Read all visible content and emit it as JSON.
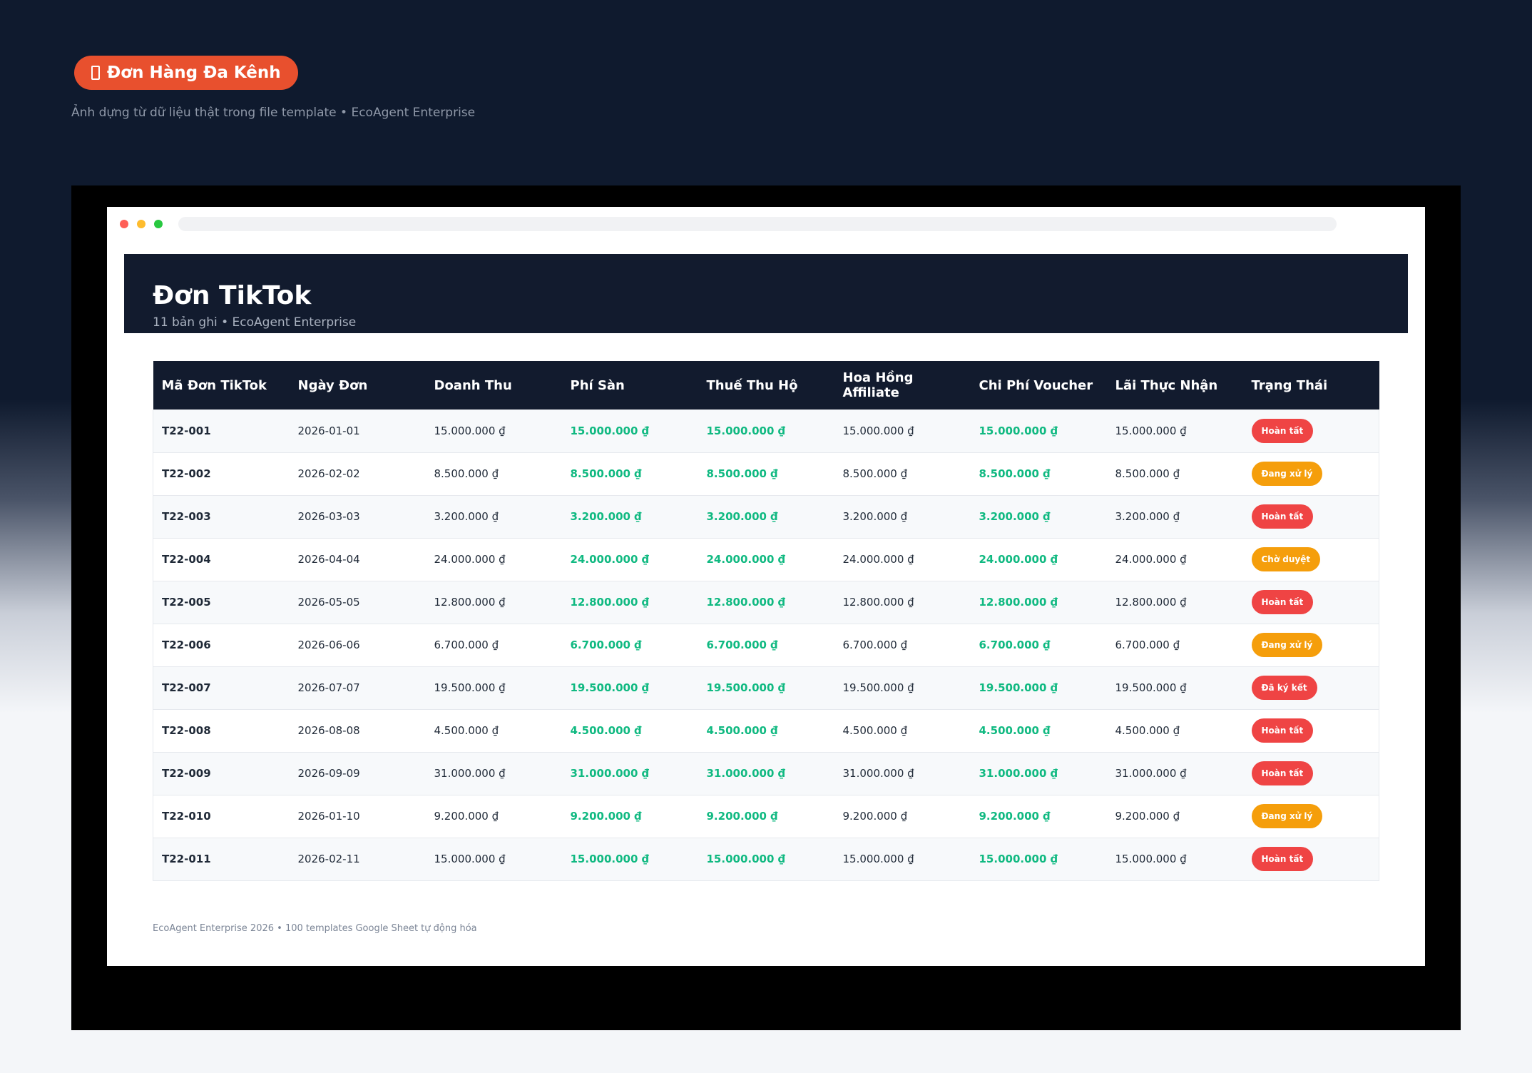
{
  "banner": {
    "label": "Đơn Hàng Đa Kênh",
    "caption": "Ảnh dựng từ dữ liệu thật trong file template • EcoAgent Enterprise"
  },
  "sheet": {
    "title": "Đơn TikTok",
    "subtitle": "11 bản ghi • EcoAgent Enterprise"
  },
  "table": {
    "columns": [
      "Mã Đơn TikTok",
      "Ngày Đơn",
      "Doanh Thu",
      "Phí Sàn",
      "Thuế Thu Hộ",
      "Hoa Hồng Affiliate",
      "Chi Phí Voucher",
      "Lãi Thực Nhận",
      "Trạng Thái"
    ],
    "rows": [
      [
        "T22-001",
        "2026-01-01",
        "15.000.000 ₫",
        "15.000.000 ₫",
        "15.000.000 ₫",
        "15.000.000 ₫",
        "15.000.000 ₫",
        "15.000.000 ₫",
        "Hoàn tất"
      ],
      [
        "T22-002",
        "2026-02-02",
        "8.500.000 ₫",
        "8.500.000 ₫",
        "8.500.000 ₫",
        "8.500.000 ₫",
        "8.500.000 ₫",
        "8.500.000 ₫",
        "Đang xử lý"
      ],
      [
        "T22-003",
        "2026-03-03",
        "3.200.000 ₫",
        "3.200.000 ₫",
        "3.200.000 ₫",
        "3.200.000 ₫",
        "3.200.000 ₫",
        "3.200.000 ₫",
        "Hoàn tất"
      ],
      [
        "T22-004",
        "2026-04-04",
        "24.000.000 ₫",
        "24.000.000 ₫",
        "24.000.000 ₫",
        "24.000.000 ₫",
        "24.000.000 ₫",
        "24.000.000 ₫",
        "Chờ duyệt"
      ],
      [
        "T22-005",
        "2026-05-05",
        "12.800.000 ₫",
        "12.800.000 ₫",
        "12.800.000 ₫",
        "12.800.000 ₫",
        "12.800.000 ₫",
        "12.800.000 ₫",
        "Hoàn tất"
      ],
      [
        "T22-006",
        "2026-06-06",
        "6.700.000 ₫",
        "6.700.000 ₫",
        "6.700.000 ₫",
        "6.700.000 ₫",
        "6.700.000 ₫",
        "6.700.000 ₫",
        "Đang xử lý"
      ],
      [
        "T22-007",
        "2026-07-07",
        "19.500.000 ₫",
        "19.500.000 ₫",
        "19.500.000 ₫",
        "19.500.000 ₫",
        "19.500.000 ₫",
        "19.500.000 ₫",
        "Đã ký kết"
      ],
      [
        "T22-008",
        "2026-08-08",
        "4.500.000 ₫",
        "4.500.000 ₫",
        "4.500.000 ₫",
        "4.500.000 ₫",
        "4.500.000 ₫",
        "4.500.000 ₫",
        "Hoàn tất"
      ],
      [
        "T22-009",
        "2026-09-09",
        "31.000.000 ₫",
        "31.000.000 ₫",
        "31.000.000 ₫",
        "31.000.000 ₫",
        "31.000.000 ₫",
        "31.000.000 ₫",
        "Hoàn tất"
      ],
      [
        "T22-010",
        "2026-01-10",
        "9.200.000 ₫",
        "9.200.000 ₫",
        "9.200.000 ₫",
        "9.200.000 ₫",
        "9.200.000 ₫",
        "9.200.000 ₫",
        "Đang xử lý"
      ],
      [
        "T22-011",
        "2026-02-11",
        "15.000.000 ₫",
        "15.000.000 ₫",
        "15.000.000 ₫",
        "15.000.000 ₫",
        "15.000.000 ₫",
        "15.000.000 ₫",
        "Hoàn tất"
      ]
    ],
    "status_colors": {
      "Hoàn tất": "#ef4444",
      "Đã ký kết": "#ef4444",
      "Đang xử lý": "#f59e0b",
      "Chờ duyệt": "#f59e0b"
    }
  },
  "footer": {
    "text": "EcoAgent Enterprise 2026 • 100 templates Google Sheet tự động hóa"
  }
}
